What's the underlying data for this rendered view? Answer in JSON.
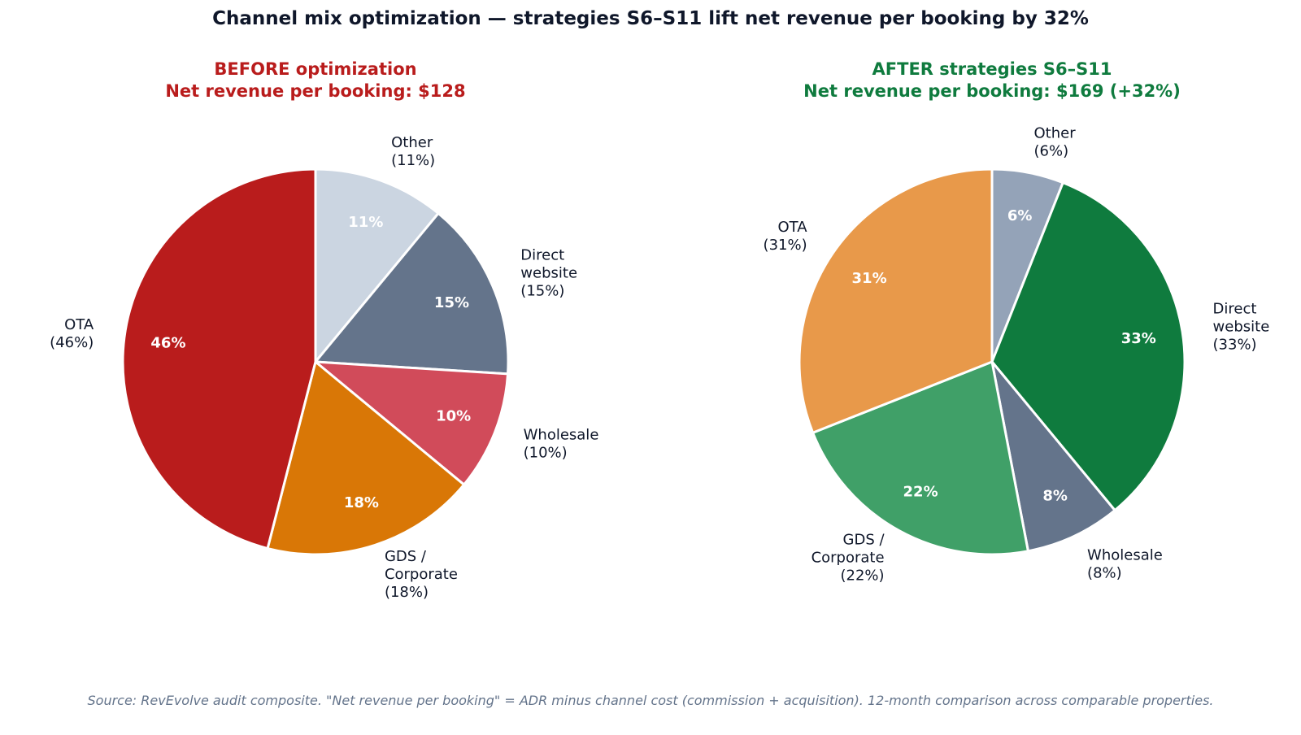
{
  "title": "Channel mix optimization — strategies S6–S11 lift net revenue per booking by 32%",
  "source_note": "Source: RevEvolve audit composite. \"Net revenue per booking\" = ADR minus channel cost (commission + acquisition). 12-month comparison across comparable properties.",
  "chart_data": [
    {
      "type": "pie",
      "title": "BEFORE optimization",
      "subtitle": "Net revenue per booking: $128",
      "title_color": "#b91c1c",
      "start_angle": "12 o'clock",
      "direction": "clockwise",
      "slices": [
        {
          "label": [
            "Other",
            "(11%)"
          ],
          "value": 11,
          "pct_label": "11%",
          "color": "#cbd5e1"
        },
        {
          "label": [
            "Direct",
            "website",
            "(15%)"
          ],
          "value": 15,
          "pct_label": "15%",
          "color": "#64748b"
        },
        {
          "label": [
            "Wholesale",
            "(10%)"
          ],
          "value": 10,
          "pct_label": "10%",
          "color": "#d14b5a"
        },
        {
          "label": [
            "GDS /",
            "Corporate",
            "(18%)"
          ],
          "value": 18,
          "pct_label": "18%",
          "color": "#d97706"
        },
        {
          "label": [
            "OTA",
            "(46%)"
          ],
          "value": 46,
          "pct_label": "46%",
          "color": "#b91c1c"
        }
      ]
    },
    {
      "type": "pie",
      "title": "AFTER strategies S6–S11",
      "subtitle": "Net revenue per booking: $169 (+32%)",
      "title_color": "#0f7b3e",
      "start_angle": "12 o'clock",
      "direction": "clockwise",
      "slices": [
        {
          "label": [
            "Other",
            "(6%)"
          ],
          "value": 6,
          "pct_label": "6%",
          "color": "#94a3b8"
        },
        {
          "label": [
            "Direct",
            "website",
            "(33%)"
          ],
          "value": 33,
          "pct_label": "33%",
          "color": "#0f7b3e"
        },
        {
          "label": [
            "Wholesale",
            "(8%)"
          ],
          "value": 8,
          "pct_label": "8%",
          "color": "#64748b"
        },
        {
          "label": [
            "GDS /",
            "Corporate",
            "(22%)"
          ],
          "value": 22,
          "pct_label": "22%",
          "color": "#40a068"
        },
        {
          "label": [
            "OTA",
            "(31%)"
          ],
          "value": 31,
          "pct_label": "31%",
          "color": "#e8994a"
        }
      ]
    }
  ]
}
